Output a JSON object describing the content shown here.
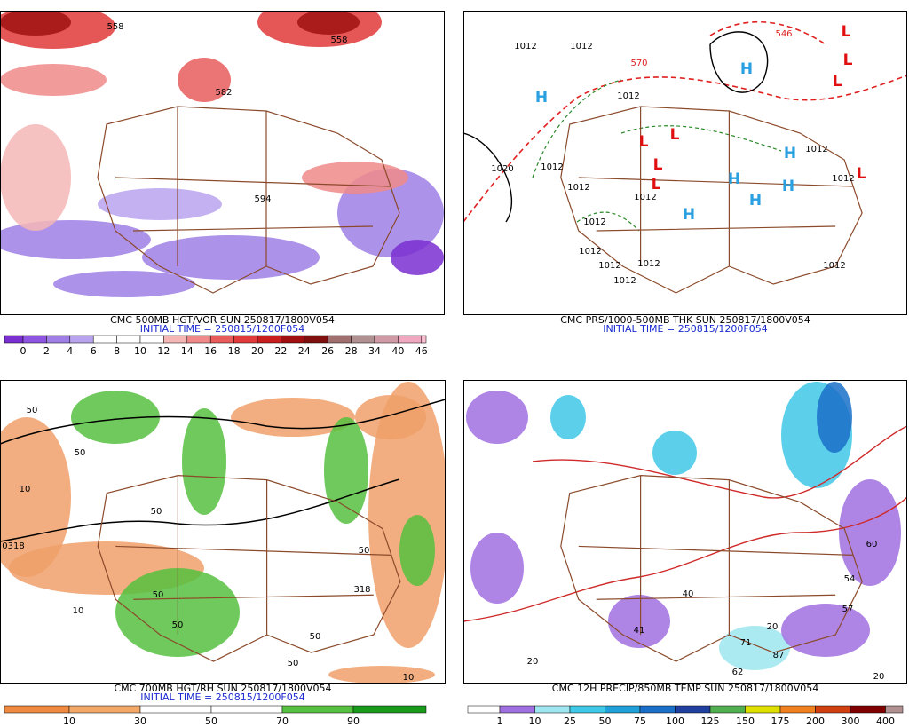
{
  "panels": [
    {
      "caption": "CMC 500MB HGT/VOR SUN 250817/1800V054",
      "initial_time": "INITIAL TIME = 250815/1200F054",
      "colorbar": [
        0,
        2,
        4,
        6,
        8,
        10,
        12,
        14,
        16,
        18,
        20,
        22,
        24,
        26,
        28,
        34,
        40,
        46
      ],
      "map_labels": [
        "558",
        "558",
        "582",
        "594"
      ]
    },
    {
      "caption": "CMC PRS/1000-500MB THK SUN 250817/1800V054",
      "initial_time": "INITIAL TIME = 250815/1200F054",
      "map_labels": [
        "1012",
        "1012",
        "1012",
        "1012",
        "1012",
        "1012",
        "1012",
        "1012",
        "1012",
        "1012",
        "1012",
        "1012",
        "1012",
        "1020",
        "1012",
        "546",
        "570",
        "H",
        "H",
        "H",
        "H",
        "H",
        "H",
        "H",
        "L",
        "L",
        "L",
        "L",
        "L",
        "L",
        "L",
        "L"
      ]
    },
    {
      "caption": "CMC 700MB HGT/RH SUN 250817/1800V054",
      "initial_time": "INITIAL TIME = 250815/1200F054",
      "colorbar": [
        10,
        30,
        50,
        70,
        90
      ],
      "map_labels": [
        "50",
        "50",
        "10",
        "0318",
        "50",
        "10",
        "50",
        "50",
        "318",
        "50",
        "50",
        "10",
        "50"
      ]
    },
    {
      "caption": "CMC 12H PRECIP/850MB TEMP SUN 250817/1800V054",
      "colorbar": [
        1,
        10,
        25,
        50,
        75,
        100,
        125,
        150,
        175,
        200,
        300,
        400
      ],
      "map_labels": [
        "20",
        "20",
        "71",
        "87",
        "62",
        "40",
        "41",
        "54",
        "57",
        "60",
        "20"
      ]
    }
  ]
}
